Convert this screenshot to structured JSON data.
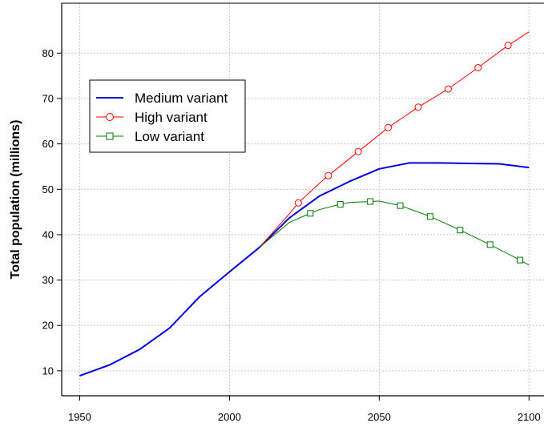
{
  "chart_data": {
    "type": "line",
    "title": "",
    "xlabel": "",
    "ylabel": "Total population (millions)",
    "xlim": [
      1944,
      2105
    ],
    "ylim": [
      4.5,
      91
    ],
    "x_ticks": [
      1950,
      2000,
      2050,
      2100
    ],
    "y_ticks": [
      10,
      20,
      30,
      40,
      50,
      60,
      70,
      80
    ],
    "grid": true,
    "legend_position": "upper-left",
    "series": [
      {
        "name": "Medium variant",
        "color": "#0000dd",
        "marker": "none",
        "line_width": 2,
        "x": [
          1950,
          1960,
          1970,
          1980,
          1990,
          2000,
          2010,
          2020,
          2030,
          2040,
          2050,
          2060,
          2070,
          2080,
          2090,
          2100
        ],
        "y": [
          8.9,
          11.3,
          14.7,
          19.4,
          26.3,
          31.8,
          37.2,
          43.7,
          48.5,
          51.7,
          54.5,
          55.8,
          55.8,
          55.7,
          55.6,
          54.8
        ]
      },
      {
        "name": "High variant",
        "color": "#ff0000",
        "marker": "circle",
        "line_width": 1,
        "x": [
          2010,
          2020,
          2023,
          2030,
          2033,
          2043,
          2053,
          2063,
          2073,
          2083,
          2093,
          2100
        ],
        "y": [
          37.2,
          44.6,
          47.0,
          51.3,
          53.0,
          58.3,
          63.6,
          68.1,
          72.1,
          76.8,
          81.7,
          84.7
        ],
        "marker_x": [
          2023,
          2033,
          2043,
          2053,
          2063,
          2073,
          2083,
          2093
        ],
        "marker_y": [
          47.0,
          53.0,
          58.3,
          63.6,
          68.1,
          72.1,
          76.8,
          81.7
        ]
      },
      {
        "name": "Low variant",
        "color": "#007700",
        "marker": "square",
        "line_width": 1,
        "x": [
          2010,
          2020,
          2027,
          2030,
          2037,
          2040,
          2047,
          2050,
          2057,
          2060,
          2067,
          2077,
          2087,
          2097,
          2100
        ],
        "y": [
          37.2,
          42.7,
          44.7,
          45.5,
          46.7,
          47.1,
          47.3,
          47.4,
          46.4,
          45.7,
          44.0,
          41.0,
          37.8,
          34.4,
          33.3
        ],
        "marker_x": [
          2027,
          2037,
          2047,
          2057,
          2067,
          2077,
          2087,
          2097
        ],
        "marker_y": [
          44.7,
          46.7,
          47.3,
          46.4,
          44.0,
          41.0,
          37.8,
          34.4
        ]
      }
    ]
  }
}
